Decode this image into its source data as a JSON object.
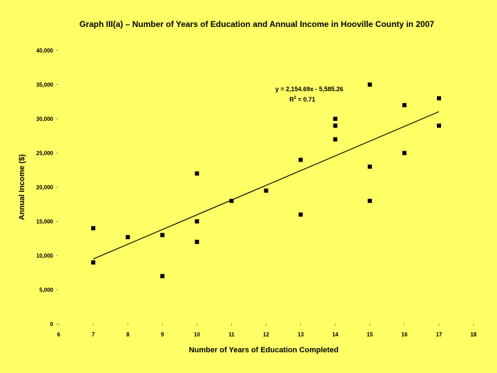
{
  "chart_data": {
    "type": "scatter",
    "title": "Graph III(a) – Number of Years of Education and Annual Income in Hooville County in 2007",
    "xlabel": "Number of Years of Education Completed",
    "ylabel": "Annual Income ($)",
    "xlim": [
      6,
      18
    ],
    "ylim": [
      0,
      40000
    ],
    "x_ticks": [
      6,
      7,
      8,
      9,
      10,
      11,
      12,
      13,
      14,
      15,
      16,
      17,
      18
    ],
    "y_ticks": [
      0,
      5000,
      10000,
      15000,
      20000,
      25000,
      30000,
      35000,
      40000
    ],
    "x_tick_labels": [
      "6",
      "7",
      "8",
      "9",
      "10",
      "11",
      "12",
      "13",
      "14",
      "15",
      "16",
      "17",
      "18"
    ],
    "y_tick_labels": [
      "0",
      "5,000",
      "10,000",
      "15,000",
      "20,000",
      "25,000",
      "30,000",
      "35,000",
      "40,000"
    ],
    "grid": false,
    "points": [
      {
        "x": 7,
        "y": 14000
      },
      {
        "x": 7,
        "y": 9000
      },
      {
        "x": 8,
        "y": 12700
      },
      {
        "x": 9,
        "y": 13000
      },
      {
        "x": 9,
        "y": 7000
      },
      {
        "x": 10,
        "y": 22000
      },
      {
        "x": 10,
        "y": 15000
      },
      {
        "x": 10,
        "y": 12000
      },
      {
        "x": 11,
        "y": 18000
      },
      {
        "x": 12,
        "y": 19500
      },
      {
        "x": 13,
        "y": 24000
      },
      {
        "x": 13,
        "y": 16000
      },
      {
        "x": 14,
        "y": 30000
      },
      {
        "x": 14,
        "y": 29000
      },
      {
        "x": 14,
        "y": 27000
      },
      {
        "x": 15,
        "y": 35000
      },
      {
        "x": 15,
        "y": 23000
      },
      {
        "x": 15,
        "y": 18000
      },
      {
        "x": 16,
        "y": 32000
      },
      {
        "x": 16,
        "y": 25000
      },
      {
        "x": 17,
        "y": 33000
      },
      {
        "x": 17,
        "y": 29000
      }
    ],
    "trendline": {
      "slope": 2154.69,
      "intercept": -5585.26,
      "x_range": [
        7,
        17
      ],
      "equation_label": "y = 2,154.69x - 5,585.26",
      "r2_prefix": "R",
      "r2_sup": "2",
      "r2_suffix": " = 0.71"
    }
  }
}
